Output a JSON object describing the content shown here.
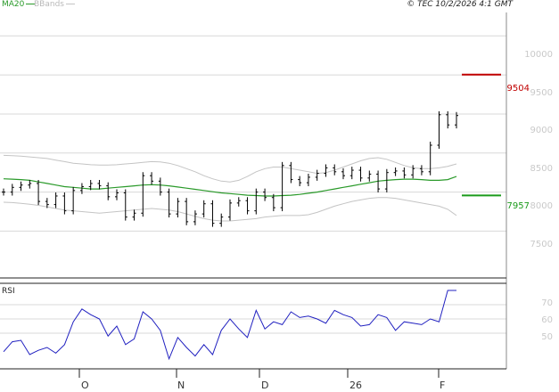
{
  "header": {
    "ma_legend": "MA20",
    "bb_legend": "BBands",
    "copyright": "© TEC 10/2/2026 4:1 GMT"
  },
  "colors": {
    "ma": "#2a9a2a",
    "bbands": "#c4c4c4",
    "price": "#000000",
    "rsi": "#2020c0",
    "resistance": "#c00000",
    "support": "#1a9a1a",
    "grid": "#d8d8d8",
    "axis": "#888888"
  },
  "chart_data": [
    {
      "type": "line",
      "title": "",
      "ylim": [
        6900,
        10300
      ],
      "y_ticks": [
        "10000",
        "9500",
        "9000",
        "8500",
        "8000",
        "7500"
      ],
      "x_ticks": [
        "O",
        "N",
        "D",
        "26",
        "F"
      ],
      "levels": [
        {
          "label": "9504",
          "value": 9504,
          "color": "#c00000"
        },
        {
          "label": "7957",
          "value": 7957,
          "color": "#1a9a1a"
        }
      ],
      "series": [
        {
          "name": "MA20",
          "values": [
            8170,
            8165,
            8160,
            8150,
            8130,
            8110,
            8090,
            8070,
            8060,
            8050,
            8040,
            8040,
            8050,
            8060,
            8070,
            8080,
            8090,
            8095,
            8090,
            8080,
            8065,
            8050,
            8035,
            8020,
            8005,
            7990,
            7980,
            7970,
            7960,
            7955,
            7950,
            7950,
            7955,
            7960,
            7970,
            7985,
            8000,
            8020,
            8040,
            8060,
            8080,
            8100,
            8120,
            8140,
            8150,
            8160,
            8165,
            8165,
            8160,
            8150,
            8150,
            8160,
            8200
          ]
        },
        {
          "name": "BBands",
          "values": [
            8470,
            8465,
            8460,
            8450,
            8440,
            8430,
            8410,
            8390,
            8370,
            8360,
            8350,
            8345,
            8345,
            8350,
            8360,
            8370,
            8380,
            8390,
            8385,
            8370,
            8340,
            8300,
            8260,
            8210,
            8170,
            8140,
            8130,
            8150,
            8200,
            8260,
            8300,
            8320,
            8320,
            8300,
            8280,
            8260,
            8240,
            8250,
            8280,
            8320,
            8360,
            8400,
            8430,
            8440,
            8420,
            8380,
            8340,
            8310,
            8300,
            8300,
            8310,
            8330,
            8360
          ]
        },
        {
          "name": "BBands",
          "values": [
            7870,
            7865,
            7855,
            7845,
            7830,
            7810,
            7790,
            7770,
            7760,
            7750,
            7740,
            7730,
            7740,
            7750,
            7760,
            7770,
            7780,
            7790,
            7780,
            7770,
            7750,
            7720,
            7690,
            7660,
            7640,
            7630,
            7630,
            7640,
            7650,
            7660,
            7680,
            7690,
            7700,
            7700,
            7700,
            7710,
            7740,
            7780,
            7820,
            7850,
            7880,
            7900,
            7920,
            7930,
            7930,
            7920,
            7900,
            7880,
            7860,
            7840,
            7820,
            7780,
            7700
          ]
        },
        {
          "name": "",
          "values": [
            8000,
            8060,
            8090,
            8110,
            7880,
            7840,
            7950,
            7760,
            8020,
            8070,
            8110,
            8080,
            7940,
            7990,
            7680,
            7730,
            8210,
            8140,
            8000,
            7720,
            7880,
            7620,
            7720,
            7850,
            7600,
            7680,
            7860,
            7890,
            7760,
            8000,
            7930,
            7800,
            8340,
            8160,
            8120,
            8190,
            8240,
            8310,
            8260,
            8210,
            8280,
            8180,
            8230,
            8040,
            8250,
            8270,
            8220,
            8300,
            8260,
            8600,
            8990,
            8860,
            8980
          ]
        }
      ]
    },
    {
      "type": "line",
      "title": "RSI",
      "ylim": [
        25,
        85
      ],
      "y_ticks": [
        "70",
        "60",
        "50"
      ],
      "series": [
        {
          "name": "",
          "values": [
            37,
            44,
            45,
            35,
            38,
            40,
            36,
            42,
            58,
            67,
            63,
            60,
            48,
            55,
            42,
            46,
            65,
            60,
            52,
            32,
            47,
            40,
            34,
            42,
            35,
            52,
            60,
            53,
            47,
            66,
            53,
            58,
            56,
            65,
            61,
            62,
            60,
            57,
            66,
            63,
            61,
            55,
            56,
            63,
            61,
            52,
            58,
            57,
            56,
            60,
            58,
            80,
            80
          ]
        }
      ]
    }
  ]
}
